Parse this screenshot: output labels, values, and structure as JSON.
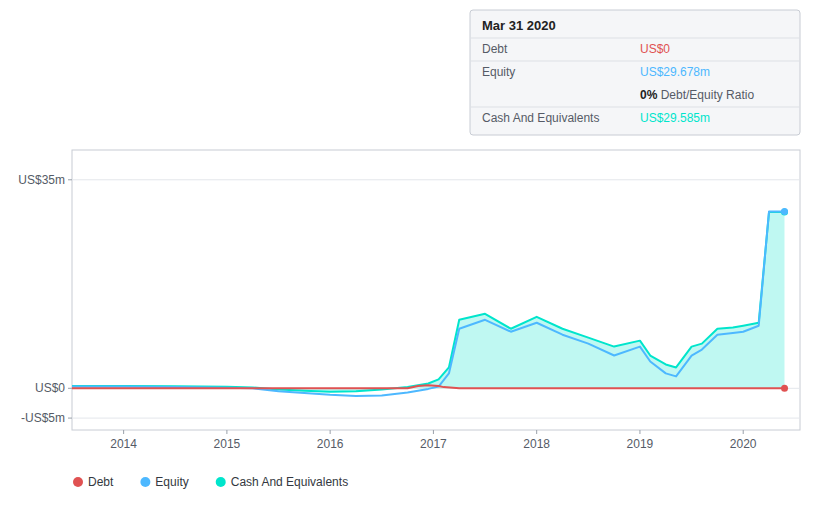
{
  "chart_data": {
    "type": "line",
    "xlim": [
      2013.5,
      2020.55
    ],
    "xticks": [
      2014,
      2015,
      2016,
      2017,
      2018,
      2019,
      2020
    ],
    "ylim": [
      -7,
      40
    ],
    "yticks": [
      {
        "value": -5,
        "label": "-US$5m"
      },
      {
        "value": 0,
        "label": "US$0"
      },
      {
        "value": 35,
        "label": "US$35m"
      }
    ],
    "grid": "y",
    "legend": "bottom",
    "series": [
      {
        "name": "Debt",
        "color": "#e05252",
        "type": "line",
        "x": [
          2013.5,
          2014.0,
          2014.5,
          2015.0,
          2015.5,
          2016.0,
          2016.5,
          2016.75,
          2016.85,
          2016.95,
          2017.05,
          2017.1,
          2017.25,
          2017.5,
          2018.0,
          2018.5,
          2019.0,
          2019.5,
          2020.0,
          2020.25,
          2020.4
        ],
        "values": [
          0,
          0,
          0,
          0,
          0,
          0,
          0,
          0,
          0.4,
          0.5,
          0.4,
          0.2,
          0,
          0,
          0,
          0,
          0,
          0,
          0,
          0,
          0
        ]
      },
      {
        "name": "Equity",
        "color": "#4db8ff",
        "type": "line",
        "x": [
          2013.5,
          2014.0,
          2014.5,
          2015.0,
          2015.25,
          2015.5,
          2015.75,
          2016.0,
          2016.25,
          2016.5,
          2016.75,
          2016.85,
          2016.95,
          2017.05,
          2017.15,
          2017.25,
          2017.5,
          2017.75,
          2018.0,
          2018.25,
          2018.5,
          2018.75,
          2019.0,
          2019.1,
          2019.25,
          2019.35,
          2019.5,
          2019.6,
          2019.75,
          2019.9,
          2020.0,
          2020.15,
          2020.25,
          2020.4
        ],
        "values": [
          0.3,
          0.3,
          0.2,
          0.1,
          0.0,
          -0.5,
          -0.8,
          -1.1,
          -1.3,
          -1.2,
          -0.7,
          -0.4,
          -0.1,
          0.3,
          2.5,
          10.0,
          11.5,
          9.5,
          11.0,
          9.0,
          7.5,
          5.5,
          7.0,
          4.5,
          2.5,
          2.0,
          5.5,
          6.5,
          9.0,
          9.3,
          9.5,
          10.5,
          29.678,
          29.678
        ]
      },
      {
        "name": "Cash And Equivalents",
        "color": "#00e5cc",
        "type": "area",
        "x": [
          2013.5,
          2014.0,
          2014.5,
          2015.0,
          2015.25,
          2015.5,
          2015.75,
          2016.0,
          2016.25,
          2016.5,
          2016.75,
          2016.85,
          2016.95,
          2017.05,
          2017.15,
          2017.25,
          2017.5,
          2017.75,
          2018.0,
          2018.25,
          2018.5,
          2018.75,
          2019.0,
          2019.1,
          2019.25,
          2019.35,
          2019.5,
          2019.6,
          2019.75,
          2019.9,
          2020.0,
          2020.15,
          2020.25,
          2020.4
        ],
        "values": [
          0.4,
          0.4,
          0.35,
          0.25,
          0.15,
          -0.2,
          -0.4,
          -0.6,
          -0.5,
          -0.2,
          0.2,
          0.5,
          0.8,
          1.5,
          3.5,
          11.5,
          12.5,
          10.0,
          12.0,
          10.0,
          8.5,
          7.0,
          8.0,
          5.5,
          4.0,
          3.5,
          7.0,
          7.5,
          10.0,
          10.2,
          10.5,
          11.0,
          29.585,
          29.585
        ]
      }
    ],
    "annotations": [
      {
        "text": "Mar 31 2020"
      },
      {
        "label": "Debt",
        "text": "US$0",
        "color": "#e05252"
      },
      {
        "label": "Equity",
        "text": "US$29.678m",
        "color": "#4db8ff"
      },
      {
        "text": "0%",
        "note": " Debt/Equity Ratio"
      },
      {
        "label": "Cash And Equivalents",
        "text": "US$29.585m",
        "color": "#00e5cc"
      }
    ]
  }
}
